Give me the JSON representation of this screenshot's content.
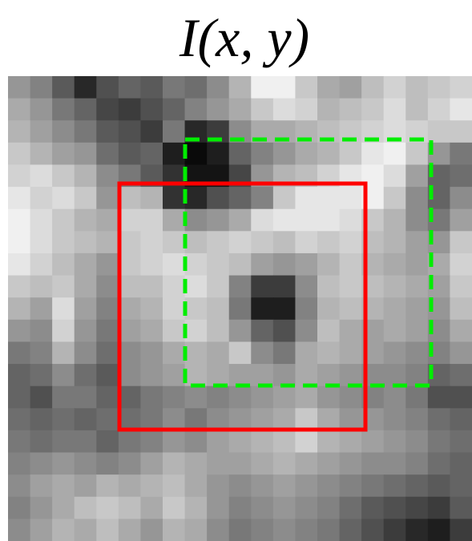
{
  "title": "I(x, y)"
}
